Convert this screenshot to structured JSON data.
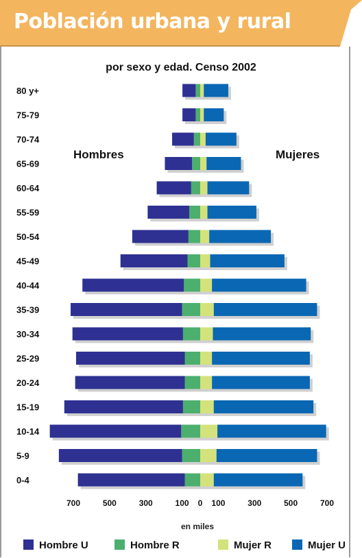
{
  "title": "Población urbana y rural",
  "chart_data": {
    "type": "bar",
    "orientation": "horizontal-population-pyramid",
    "title": "Población urbana y rural",
    "subtitle": "por sexo y edad. Censo 2002",
    "xlabel": "en miles",
    "left_group_label": "Hombres",
    "right_group_label": "Mujeres",
    "x_ticks_left": [
      "700",
      "500",
      "300",
      "100"
    ],
    "x_center_tick": "0",
    "x_ticks_right": [
      "100",
      "300",
      "500",
      "700"
    ],
    "xlim": [
      -700,
      700
    ],
    "categories": [
      "80 y+",
      "75-79",
      "70-74",
      "65-69",
      "60-64",
      "55-59",
      "50-54",
      "45-49",
      "40-44",
      "35-39",
      "30-34",
      "25-29",
      "20-24",
      "15-19",
      "10-14",
      "5-9",
      "0-4"
    ],
    "legend_position": "bottom",
    "series": [
      {
        "name": "Hombre U",
        "color": "#2e3192",
        "values": [
          73,
          73,
          120,
          150,
          190,
          230,
          310,
          370,
          560,
          615,
          610,
          600,
          605,
          655,
          725,
          680,
          590
        ]
      },
      {
        "name": "Hombre R",
        "color": "#4caf6e",
        "values": [
          25,
          25,
          35,
          45,
          50,
          60,
          65,
          70,
          90,
          100,
          95,
          85,
          85,
          95,
          105,
          100,
          85
        ]
      },
      {
        "name": "Mujer R",
        "color": "#d4e27c",
        "values": [
          20,
          20,
          30,
          35,
          40,
          40,
          50,
          55,
          65,
          75,
          70,
          65,
          65,
          75,
          95,
          90,
          75
        ]
      },
      {
        "name": "Mujer U",
        "color": "#0a67b3",
        "values": [
          135,
          110,
          170,
          190,
          230,
          270,
          340,
          410,
          520,
          570,
          540,
          540,
          540,
          550,
          600,
          555,
          490
        ]
      }
    ]
  }
}
